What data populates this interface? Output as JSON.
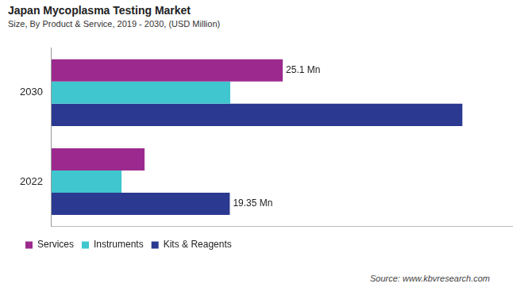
{
  "chart_data": {
    "type": "bar",
    "orientation": "horizontal",
    "title": "Japan Mycoplasma Testing Market",
    "subtitle": "Size, By Product & Service, 2019 - 2030, (USD Million)",
    "source": "Source: www.kbvresearch.com",
    "categories": [
      "2030",
      "2022"
    ],
    "series": [
      {
        "name": "Services",
        "color": "#9c2a8e",
        "values": [
          25.1,
          10.1
        ],
        "value_labels": [
          "25.1 Mn",
          null
        ]
      },
      {
        "name": "Instruments",
        "color": "#3fc6cf",
        "values": [
          19.4,
          7.6
        ],
        "value_labels": [
          null,
          null
        ]
      },
      {
        "name": "Kits & Reagents",
        "color": "#2b3990",
        "values": [
          44.6,
          19.35
        ],
        "value_labels": [
          null,
          "19.35 Mn"
        ]
      }
    ],
    "xlim": [
      0,
      50
    ],
    "grid": false,
    "legend": "bottom-left",
    "tick_labels": "y",
    "data_labels": true
  }
}
